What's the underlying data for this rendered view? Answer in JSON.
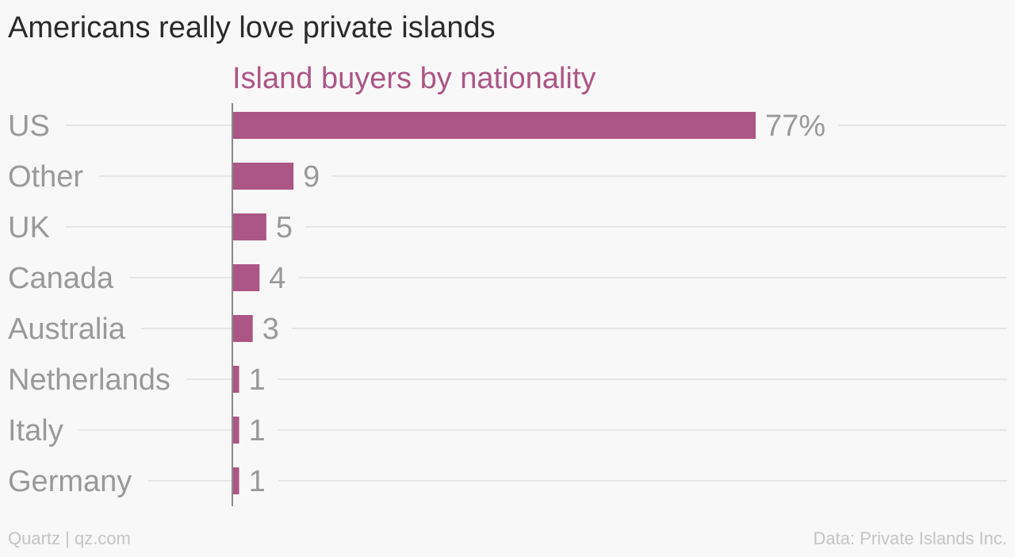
{
  "chart_data": {
    "type": "bar",
    "orientation": "horizontal",
    "title": "Americans really love private islands",
    "subtitle": "Island buyers by nationality",
    "categories": [
      "US",
      "Other",
      "UK",
      "Canada",
      "Australia",
      "Netherlands",
      "Italy",
      "Germany"
    ],
    "values": [
      77,
      9,
      5,
      4,
      3,
      1,
      1,
      1
    ],
    "value_labels": [
      "77%",
      "9",
      "5",
      "4",
      "3",
      "1",
      "1",
      "1"
    ],
    "unit": "%",
    "xlim": [
      0,
      77
    ],
    "grid": true,
    "legend": "none"
  },
  "colors": {
    "bar": "#ac5686",
    "title": "#2b2b2b",
    "subtitle": "#ac5686",
    "label": "#999999",
    "gridline": "#e5e5e5",
    "axis": "#8a8a8a",
    "footer": "#c4c4c4"
  },
  "footer": {
    "source_left": "Quartz | qz.com",
    "source_right": "Data: Private Islands Inc."
  }
}
